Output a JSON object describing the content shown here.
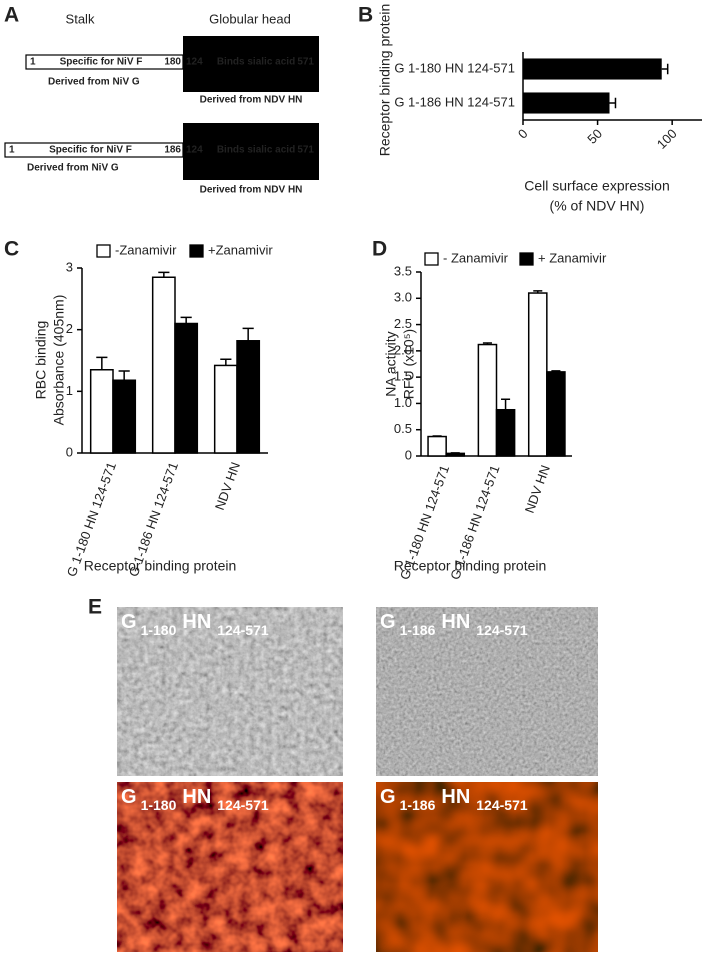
{
  "panel_a": {
    "letter": "A",
    "stalk_heading": "Stalk",
    "head_heading": "Globular head",
    "constructs": [
      {
        "start": "1",
        "stalk_text": "Specific for NiV F",
        "stalk_end": "180",
        "head_start": "124",
        "head_text": "Binds sialic acid",
        "head_end": "571",
        "stalk_source": "Derived from NiV G",
        "head_source": "Derived from NDV HN"
      },
      {
        "start": "1",
        "stalk_text": "Specific for NiV F",
        "stalk_end": "186",
        "head_start": "124",
        "head_text": "Binds sialic acid",
        "head_end": "571",
        "stalk_source": "Derived from NiV G",
        "head_source": "Derived from NDV HN"
      }
    ]
  },
  "chart_data": [
    {
      "type": "bar",
      "orientation": "horizontal",
      "panel": "B",
      "ylabel": [
        "Receptor binding protein"
      ],
      "xlabel": [
        "Cell surface expression",
        "(% of NDV HN)"
      ],
      "categories": [
        "G 1-180 HN 124-571",
        "G 1-186 HN 124-571"
      ],
      "values": [
        93,
        58
      ],
      "errors": [
        4,
        4
      ],
      "color": "#000000",
      "xlim": [
        0,
        120
      ],
      "xticks": [
        0,
        50,
        100
      ]
    },
    {
      "type": "bar",
      "orientation": "vertical",
      "panel": "C",
      "ylabel": [
        "RBC binding",
        "Absorbance (405nm)"
      ],
      "xlabel": [
        "Receptor binding protein"
      ],
      "categories": [
        "G 1-180 HN 124-571",
        "G 1-186 HN 124-571",
        "NDV HN"
      ],
      "series": [
        {
          "name": "-Zanamivir",
          "color": "#ffffff",
          "values": [
            1.35,
            2.85,
            1.42
          ],
          "errors": [
            0.2,
            0.08,
            0.1
          ]
        },
        {
          "name": "+Zanamivir",
          "color": "#000000",
          "values": [
            1.18,
            2.1,
            1.82
          ],
          "errors": [
            0.15,
            0.1,
            0.2
          ]
        }
      ],
      "ylim": [
        0,
        3
      ],
      "yticks": [
        0,
        1,
        2,
        3
      ]
    },
    {
      "type": "bar",
      "orientation": "vertical",
      "panel": "D",
      "ylabel": [
        "NA activity",
        "RFU (x10⁵)"
      ],
      "xlabel": [
        "Receptor binding protein"
      ],
      "categories": [
        "G 1-180 HN 124-571",
        "G 1-186 HN 124-571",
        "NDV HN"
      ],
      "series": [
        {
          "name": "- Zanamivir",
          "color": "#ffffff",
          "values": [
            0.37,
            2.12,
            3.1
          ],
          "errors": [
            0.01,
            0.03,
            0.04
          ]
        },
        {
          "name": "+ Zanamivir",
          "color": "#000000",
          "values": [
            0.05,
            0.88,
            1.6
          ],
          "errors": [
            0.01,
            0.2,
            0.02
          ]
        }
      ],
      "ylim": [
        0,
        3.5
      ],
      "yticks": [
        0,
        0.5,
        {
          "value": 1,
          "label": "1.0"
        },
        1.5,
        {
          "value": 2,
          "label": "2.0"
        },
        2.5,
        {
          "value": 3,
          "label": "3.0"
        },
        3.5
      ]
    }
  ],
  "panel_e": {
    "letter": "E",
    "images": [
      {
        "g": "G",
        "g_sub": "1-180",
        "hn": "HN",
        "hn_sub": "124-571"
      },
      {
        "g": "G",
        "g_sub": "1-186",
        "hn": "HN",
        "hn_sub": "124-571"
      },
      {
        "g": "G",
        "g_sub": "1-180",
        "hn": "HN",
        "hn_sub": "124-571"
      },
      {
        "g": "G",
        "g_sub": "1-186",
        "hn": "HN",
        "hn_sub": "124-571"
      }
    ]
  }
}
